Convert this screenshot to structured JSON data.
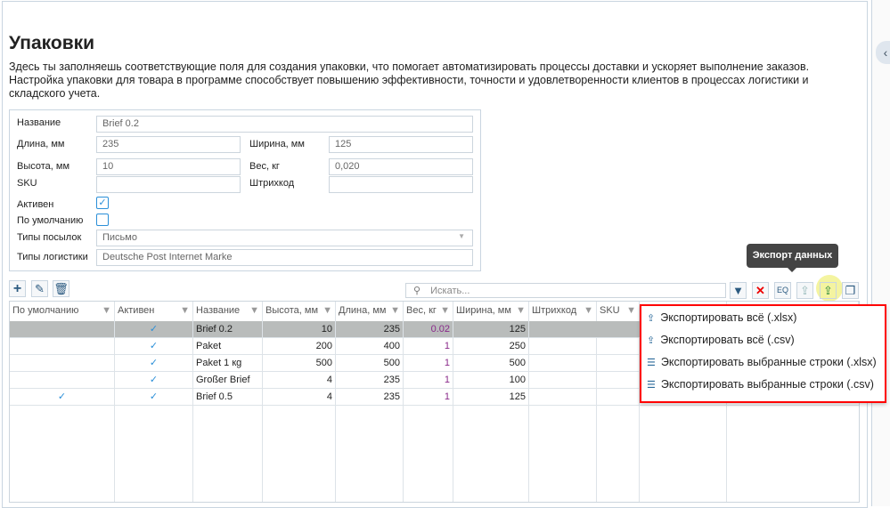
{
  "page": {
    "title": "Упаковки",
    "description": "Здесь ты заполняешь соответствующие поля для создания упаковки, что помогает автоматизировать процессы доставки и ускоряет выполнение заказов. Настройка упаковки для товара в программе способствует повышению эффективности, точности и удовлетворенности клиентов в процессах логистики и складского учета."
  },
  "form": {
    "name_label": "Название",
    "name_value": "Brief 0.2",
    "length_label": "Длина, мм",
    "length_value": "235",
    "width_label": "Ширина, мм",
    "width_value": "125",
    "height_label": "Высота, мм",
    "height_value": "10",
    "weight_label": "Вес, кг",
    "weight_value": "0,020",
    "sku_label": "SKU",
    "sku_value": "",
    "barcode_label": "Штрихкод",
    "barcode_value": "",
    "active_label": "Активен",
    "active_checked": true,
    "default_label": "По умолчанию",
    "default_checked": false,
    "parcel_types_label": "Типы посылок",
    "parcel_types_value": "Письмо",
    "logistics_label": "Типы логистики",
    "logistics_value": "Deutsche Post Internet Marke"
  },
  "toolbar": {
    "search_placeholder": "Искать...",
    "tooltip": "Экспорт данных"
  },
  "grid": {
    "columns": [
      "По умолчанию",
      "Активен",
      "Название",
      "Высота, мм",
      "Длина, мм",
      "Вес, кг",
      "Ширина, мм",
      "Штрихкод",
      "SKU",
      "",
      ""
    ],
    "rows": [
      {
        "default": "",
        "active": "✓",
        "name": "Brief 0.2",
        "height": "10",
        "length": "235",
        "weight": "0.02",
        "width": "125"
      },
      {
        "default": "",
        "active": "✓",
        "name": "Paket",
        "height": "200",
        "length": "400",
        "weight": "1",
        "width": "250"
      },
      {
        "default": "",
        "active": "✓",
        "name": "Paket 1 кg",
        "height": "500",
        "length": "500",
        "weight": "1",
        "width": "500"
      },
      {
        "default": "",
        "active": "✓",
        "name": "Großer Brief",
        "height": "4",
        "length": "235",
        "weight": "1",
        "width": "100"
      },
      {
        "default": "✓",
        "active": "✓",
        "name": "Brief 0.5",
        "height": "4",
        "length": "235",
        "weight": "1",
        "width": "125"
      }
    ]
  },
  "export_menu": [
    "Экспортировать всё (.xlsx)",
    "Экспортировать всё (.csv)",
    "Экспортировать выбранные строки (.xlsx)",
    "Экспортировать выбранные строки (.csv)"
  ]
}
